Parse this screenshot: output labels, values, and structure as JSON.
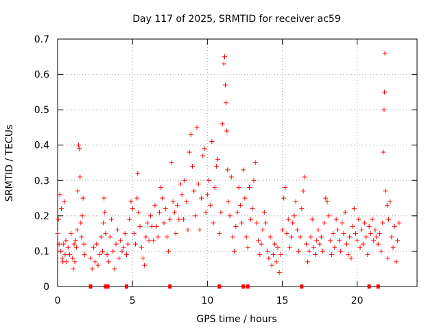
{
  "chart_data": {
    "type": "scatter",
    "title": "Day 117 of 2025, SRMTID for receiver ac59",
    "xlabel": "GPS time / hours",
    "ylabel": "SRMTID / TECUs",
    "xlim": [
      0,
      24
    ],
    "ylim": [
      0,
      0.7
    ],
    "xticks": [
      0,
      5,
      10,
      15,
      20
    ],
    "xtick_labels": [
      "0",
      "5",
      "10",
      "15",
      "20"
    ],
    "yticks": [
      0,
      0.1,
      0.2,
      0.3,
      0.4,
      0.5,
      0.6,
      0.7
    ],
    "ytick_labels": [
      "0",
      "0.1",
      "0.2",
      "0.3",
      "0.4",
      "0.5",
      "0.6",
      "0.7"
    ],
    "grid": true,
    "marker": "+",
    "color": "#ff0000",
    "series": [
      {
        "name": "SRMTID",
        "points": [
          [
            0.0,
            0.15
          ],
          [
            0.05,
            0.19
          ],
          [
            0.1,
            0.12
          ],
          [
            0.15,
            0.26
          ],
          [
            0.2,
            0.1
          ],
          [
            0.25,
            0.22
          ],
          [
            0.3,
            0.08
          ],
          [
            0.35,
            0.07
          ],
          [
            0.4,
            0.12
          ],
          [
            0.45,
            0.24
          ],
          [
            0.5,
            0.09
          ],
          [
            0.55,
            0.13
          ],
          [
            0.6,
            0.07
          ],
          [
            0.7,
            0.11
          ],
          [
            0.8,
            0.09
          ],
          [
            0.9,
            0.15
          ],
          [
            1.0,
            0.08
          ],
          [
            1.05,
            0.05
          ],
          [
            1.1,
            0.12
          ],
          [
            1.15,
            0.07
          ],
          [
            1.2,
            0.13
          ],
          [
            1.25,
            0.11
          ],
          [
            1.3,
            0.16
          ],
          [
            1.35,
            0.27
          ],
          [
            1.4,
            0.4
          ],
          [
            1.45,
            0.39
          ],
          [
            1.5,
            0.31
          ],
          [
            1.55,
            0.18
          ],
          [
            1.6,
            0.14
          ],
          [
            1.65,
            0.2
          ],
          [
            1.7,
            0.25
          ],
          [
            1.75,
            0.12
          ],
          [
            1.8,
            0.09
          ],
          [
            2.2,
            0.08
          ],
          [
            2.3,
            0.05
          ],
          [
            2.4,
            0.11
          ],
          [
            2.5,
            0.07
          ],
          [
            2.6,
            0.12
          ],
          [
            2.7,
            0.06
          ],
          [
            2.8,
            0.09
          ],
          [
            2.9,
            0.14
          ],
          [
            3.0,
            0.1
          ],
          [
            3.05,
            0.18
          ],
          [
            3.1,
            0.25
          ],
          [
            3.15,
            0.21
          ],
          [
            3.2,
            0.15
          ],
          [
            3.3,
            0.09
          ],
          [
            3.4,
            0.07
          ],
          [
            3.5,
            0.14
          ],
          [
            3.6,
            0.19
          ],
          [
            3.7,
            0.1
          ],
          [
            3.8,
            0.05
          ],
          [
            3.9,
            0.12
          ],
          [
            4.0,
            0.16
          ],
          [
            4.1,
            0.08
          ],
          [
            4.2,
            0.13
          ],
          [
            4.3,
            0.1
          ],
          [
            4.4,
            0.11
          ],
          [
            4.5,
            0.15
          ],
          [
            4.6,
            0.09
          ],
          [
            4.7,
            0.12
          ],
          [
            4.8,
            0.19
          ],
          [
            4.9,
            0.24
          ],
          [
            5.0,
            0.22
          ],
          [
            5.1,
            0.15
          ],
          [
            5.2,
            0.12
          ],
          [
            5.3,
            0.25
          ],
          [
            5.35,
            0.32
          ],
          [
            5.4,
            0.21
          ],
          [
            5.5,
            0.17
          ],
          [
            5.6,
            0.11
          ],
          [
            5.7,
            0.08
          ],
          [
            5.8,
            0.06
          ],
          [
            5.9,
            0.14
          ],
          [
            6.0,
            0.18
          ],
          [
            6.1,
            0.13
          ],
          [
            6.2,
            0.2
          ],
          [
            6.3,
            0.17
          ],
          [
            6.4,
            0.13
          ],
          [
            6.5,
            0.23
          ],
          [
            6.6,
            0.17
          ],
          [
            6.7,
            0.14
          ],
          [
            6.8,
            0.21
          ],
          [
            6.9,
            0.28
          ],
          [
            7.0,
            0.25
          ],
          [
            7.1,
            0.18
          ],
          [
            7.2,
            0.22
          ],
          [
            7.3,
            0.14
          ],
          [
            7.4,
            0.1
          ],
          [
            7.5,
            0.19
          ],
          [
            7.6,
            0.35
          ],
          [
            7.7,
            0.24
          ],
          [
            7.8,
            0.21
          ],
          [
            7.9,
            0.15
          ],
          [
            8.0,
            0.23
          ],
          [
            8.1,
            0.19
          ],
          [
            8.2,
            0.29
          ],
          [
            8.3,
            0.26
          ],
          [
            8.4,
            0.19
          ],
          [
            8.5,
            0.3
          ],
          [
            8.6,
            0.24
          ],
          [
            8.7,
            0.16
          ],
          [
            8.8,
            0.38
          ],
          [
            8.9,
            0.43
          ],
          [
            9.0,
            0.34
          ],
          [
            9.1,
            0.27
          ],
          [
            9.2,
            0.2
          ],
          [
            9.3,
            0.45
          ],
          [
            9.4,
            0.29
          ],
          [
            9.5,
            0.16
          ],
          [
            9.6,
            0.25
          ],
          [
            9.7,
            0.37
          ],
          [
            9.8,
            0.39
          ],
          [
            9.9,
            0.21
          ],
          [
            10.0,
            0.26
          ],
          [
            10.1,
            0.3
          ],
          [
            10.2,
            0.23
          ],
          [
            10.3,
            0.41
          ],
          [
            10.4,
            0.18
          ],
          [
            10.5,
            0.28
          ],
          [
            10.6,
            0.34
          ],
          [
            10.7,
            0.36
          ],
          [
            10.8,
            0.15
          ],
          [
            10.9,
            0.21
          ],
          [
            11.0,
            0.46
          ],
          [
            11.1,
            0.63
          ],
          [
            11.15,
            0.65
          ],
          [
            11.2,
            0.57
          ],
          [
            11.25,
            0.52
          ],
          [
            11.3,
            0.44
          ],
          [
            11.35,
            0.33
          ],
          [
            11.4,
            0.24
          ],
          [
            11.5,
            0.2
          ],
          [
            11.6,
            0.31
          ],
          [
            11.7,
            0.14
          ],
          [
            11.8,
            0.1
          ],
          [
            11.9,
            0.17
          ],
          [
            12.0,
            0.21
          ],
          [
            12.1,
            0.28
          ],
          [
            12.2,
            0.23
          ],
          [
            12.3,
            0.18
          ],
          [
            12.4,
            0.33
          ],
          [
            12.5,
            0.25
          ],
          [
            12.6,
            0.14
          ],
          [
            12.7,
            0.11
          ],
          [
            12.8,
            0.28
          ],
          [
            12.9,
            0.19
          ],
          [
            13.0,
            0.22
          ],
          [
            13.1,
            0.3
          ],
          [
            13.2,
            0.35
          ],
          [
            13.3,
            0.18
          ],
          [
            13.4,
            0.13
          ],
          [
            13.5,
            0.09
          ],
          [
            13.6,
            0.12
          ],
          [
            13.7,
            0.16
          ],
          [
            13.8,
            0.21
          ],
          [
            13.9,
            0.18
          ],
          [
            14.0,
            0.1
          ],
          [
            14.1,
            0.08
          ],
          [
            14.2,
            0.14
          ],
          [
            14.3,
            0.06
          ],
          [
            14.4,
            0.09
          ],
          [
            14.5,
            0.12
          ],
          [
            14.6,
            0.07
          ],
          [
            14.7,
            0.11
          ],
          [
            14.8,
            0.04
          ],
          [
            14.9,
            0.09
          ],
          [
            15.0,
            0.16
          ],
          [
            15.1,
            0.25
          ],
          [
            15.2,
            0.28
          ],
          [
            15.3,
            0.15
          ],
          [
            15.4,
            0.19
          ],
          [
            15.5,
            0.11
          ],
          [
            15.6,
            0.14
          ],
          [
            15.7,
            0.18
          ],
          [
            15.8,
            0.2
          ],
          [
            15.9,
            0.24
          ],
          [
            16.0,
            0.16
          ],
          [
            16.1,
            0.1
          ],
          [
            16.2,
            0.14
          ],
          [
            16.3,
            0.22
          ],
          [
            16.4,
            0.27
          ],
          [
            16.5,
            0.31
          ],
          [
            16.6,
            0.12
          ],
          [
            16.7,
            0.07
          ],
          [
            16.8,
            0.1
          ],
          [
            16.9,
            0.14
          ],
          [
            17.0,
            0.19
          ],
          [
            17.1,
            0.11
          ],
          [
            17.2,
            0.09
          ],
          [
            17.3,
            0.13
          ],
          [
            17.4,
            0.16
          ],
          [
            17.5,
            0.12
          ],
          [
            17.6,
            0.14
          ],
          [
            17.7,
            0.1
          ],
          [
            17.8,
            0.18
          ],
          [
            17.9,
            0.25
          ],
          [
            18.0,
            0.24
          ],
          [
            18.1,
            0.2
          ],
          [
            18.2,
            0.13
          ],
          [
            18.3,
            0.09
          ],
          [
            18.4,
            0.15
          ],
          [
            18.5,
            0.11
          ],
          [
            18.6,
            0.19
          ],
          [
            18.7,
            0.16
          ],
          [
            18.8,
            0.13
          ],
          [
            18.9,
            0.1
          ],
          [
            19.0,
            0.18
          ],
          [
            19.1,
            0.15
          ],
          [
            19.2,
            0.21
          ],
          [
            19.3,
            0.12
          ],
          [
            19.4,
            0.09
          ],
          [
            19.5,
            0.14
          ],
          [
            19.6,
            0.08
          ],
          [
            19.7,
            0.17
          ],
          [
            19.8,
            0.22
          ],
          [
            19.9,
            0.15
          ],
          [
            20.0,
            0.13
          ],
          [
            20.1,
            0.19
          ],
          [
            20.2,
            0.11
          ],
          [
            20.3,
            0.16
          ],
          [
            20.4,
            0.12
          ],
          [
            20.5,
            0.18
          ],
          [
            20.6,
            0.14
          ],
          [
            20.7,
            0.09
          ],
          [
            20.8,
            0.17
          ],
          [
            20.9,
            0.15
          ],
          [
            21.0,
            0.19
          ],
          [
            21.1,
            0.13
          ],
          [
            21.2,
            0.16
          ],
          [
            21.3,
            0.14
          ],
          [
            21.4,
            0.12
          ],
          [
            21.5,
            0.15
          ],
          [
            21.6,
            0.1
          ],
          [
            21.7,
            0.18
          ],
          [
            21.75,
            0.38
          ],
          [
            21.8,
            0.5
          ],
          [
            21.82,
            0.55
          ],
          [
            21.85,
            0.66
          ],
          [
            21.9,
            0.27
          ],
          [
            22.0,
            0.23
          ],
          [
            22.05,
            0.08
          ],
          [
            22.1,
            0.19
          ],
          [
            22.2,
            0.24
          ],
          [
            22.3,
            0.14
          ],
          [
            22.4,
            0.11
          ],
          [
            22.5,
            0.17
          ],
          [
            22.6,
            0.07
          ],
          [
            22.7,
            0.13
          ],
          [
            22.8,
            0.18
          ]
        ]
      }
    ],
    "zero_markers_x": [
      2.2,
      3.2,
      3.35,
      4.6,
      7.5,
      10.8,
      12.4,
      12.7,
      16.3,
      20.8,
      21.4
    ]
  }
}
